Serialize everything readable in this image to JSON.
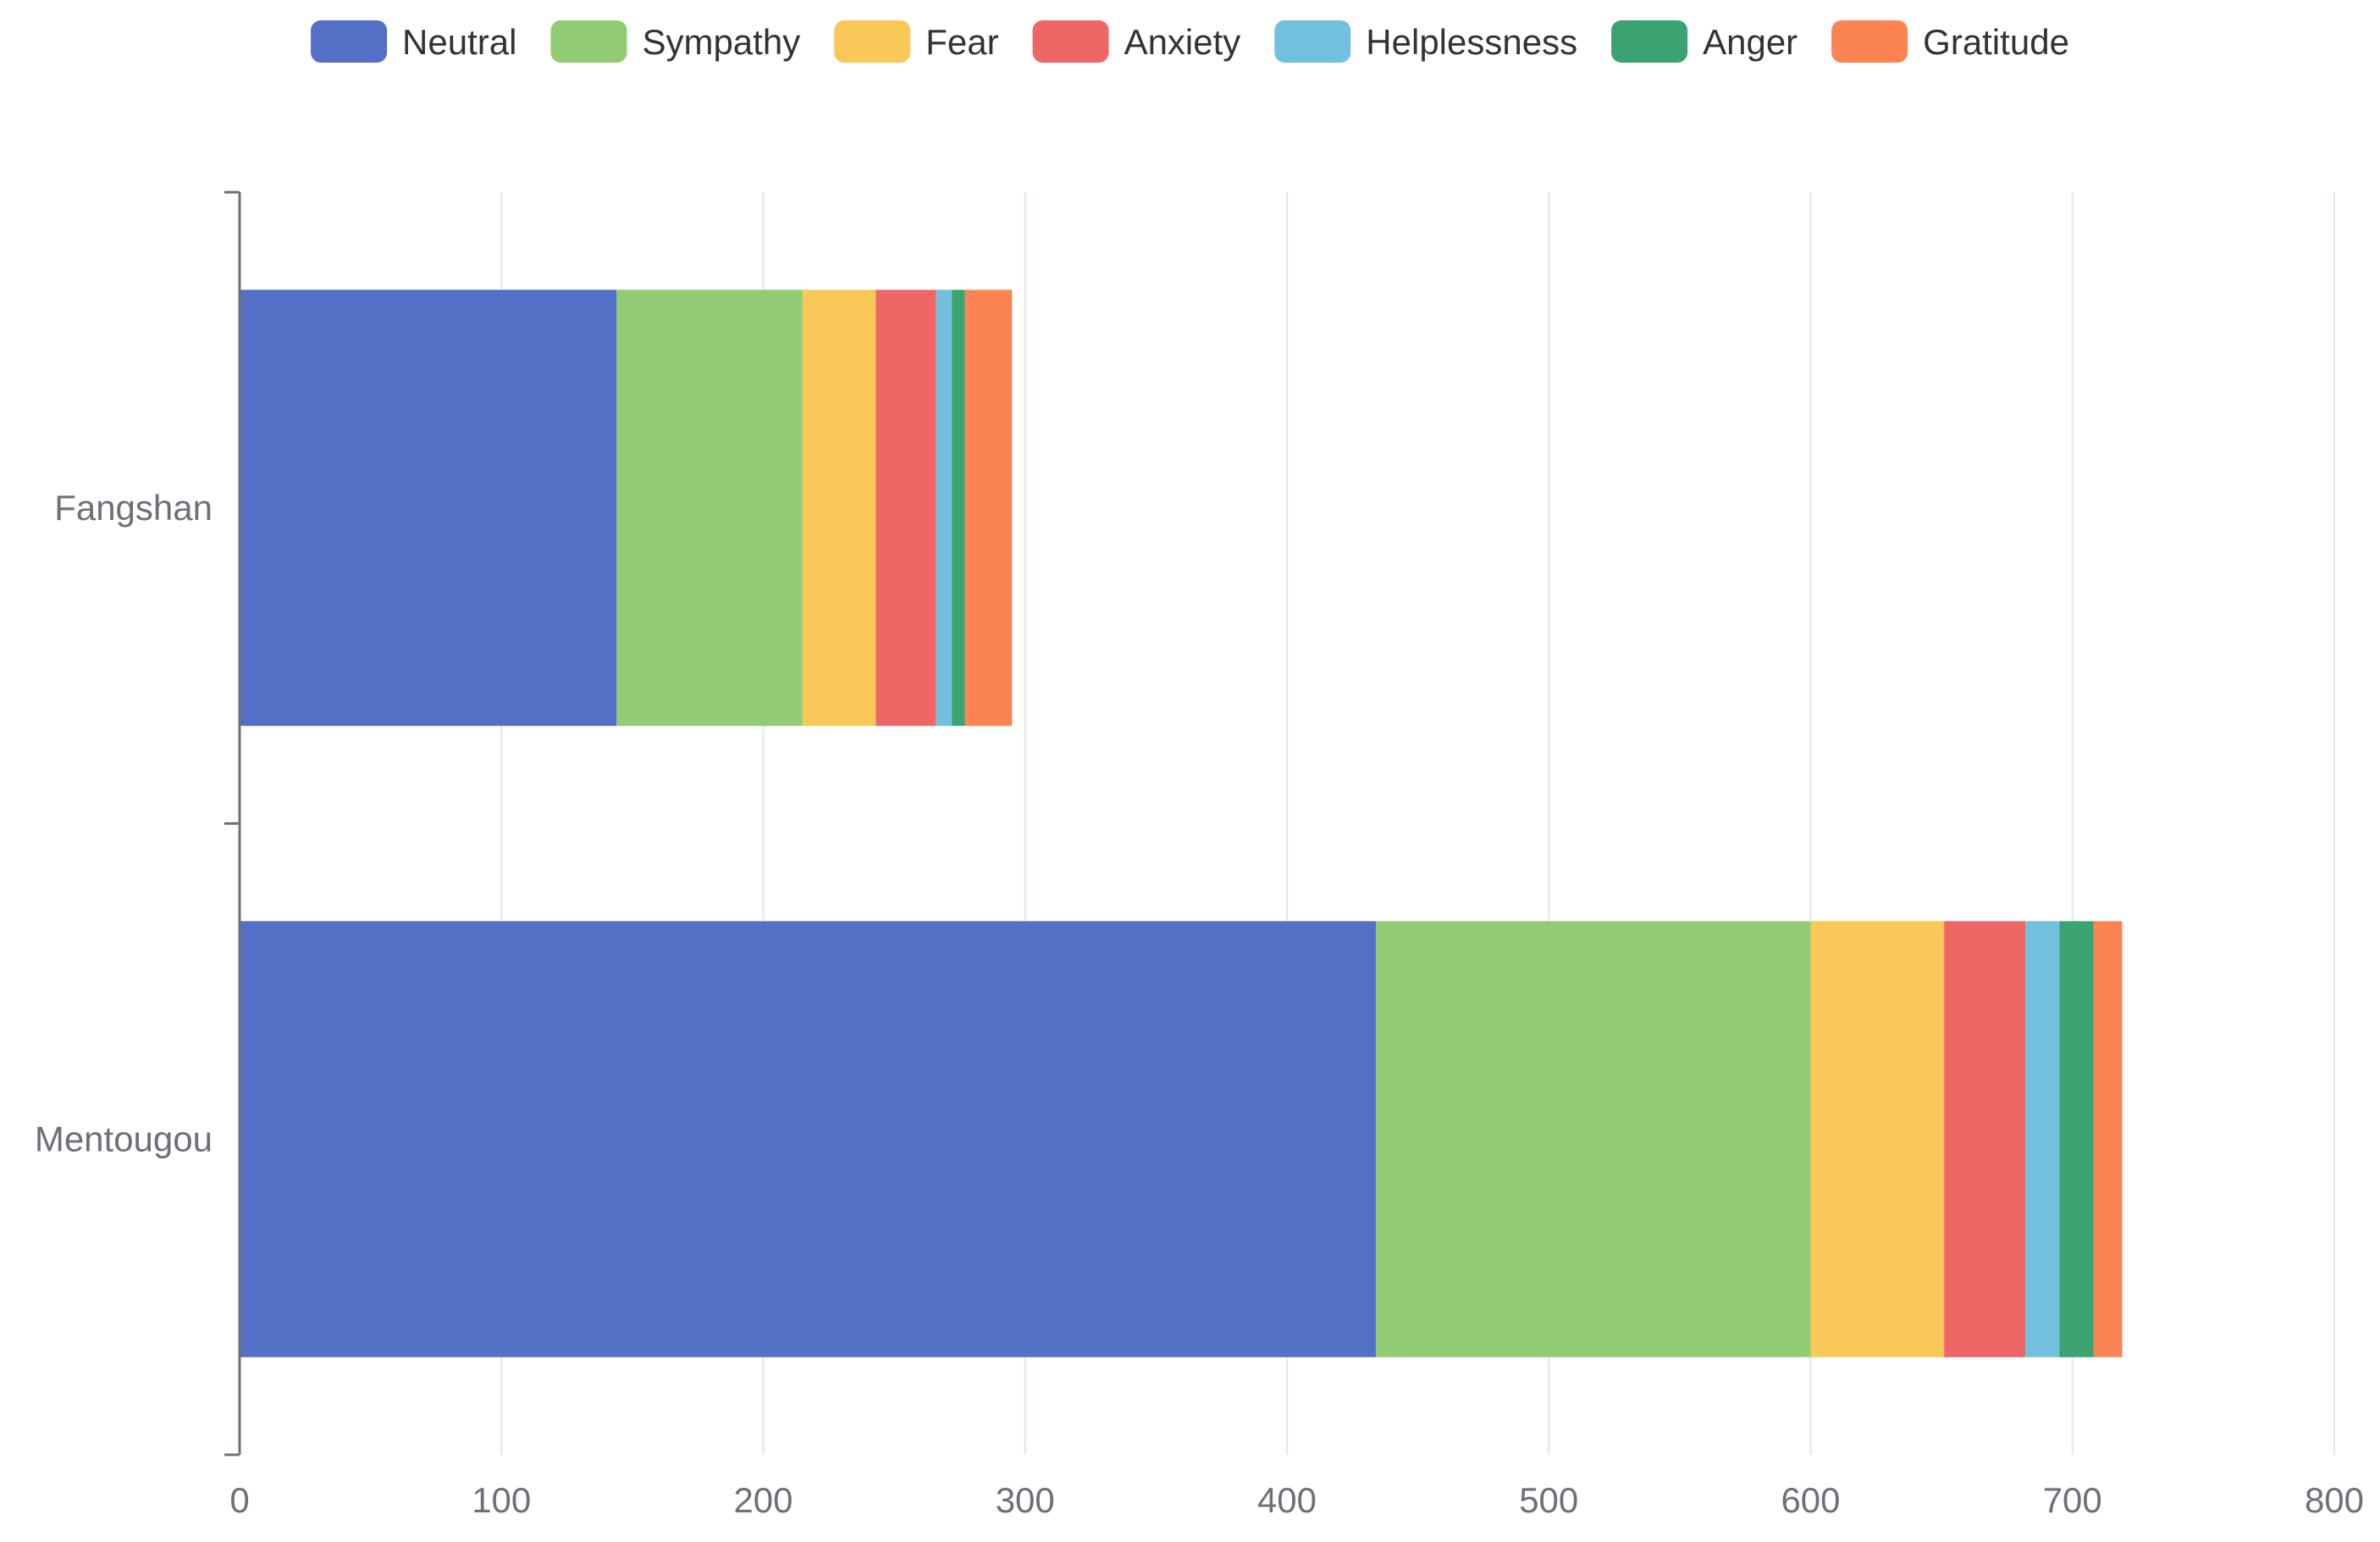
{
  "chart_data": {
    "type": "bar",
    "orientation": "horizontal",
    "stacked": true,
    "title": "",
    "xlabel": "",
    "ylabel": "",
    "categories": [
      "Fangshan",
      "Mentougou"
    ],
    "series": [
      {
        "name": "Neutral",
        "color": "#5470c6",
        "values": [
          144,
          434
        ]
      },
      {
        "name": "Sympathy",
        "color": "#91cc75",
        "values": [
          71,
          166
        ]
      },
      {
        "name": "Fear",
        "color": "#fac858",
        "values": [
          28,
          51
        ]
      },
      {
        "name": "Anxiety",
        "color": "#ee6666",
        "values": [
          23,
          31
        ]
      },
      {
        "name": "Helplessness",
        "color": "#73c0de",
        "values": [
          6,
          13
        ]
      },
      {
        "name": "Anger",
        "color": "#3ba272",
        "values": [
          5,
          13
        ]
      },
      {
        "name": "Gratitude",
        "color": "#fc8452",
        "values": [
          18,
          11
        ]
      }
    ],
    "xlim": [
      0,
      800
    ],
    "xticks": [
      0,
      100,
      200,
      300,
      400,
      500,
      600,
      700,
      800
    ],
    "grid": true,
    "legend_position": "top-center"
  }
}
